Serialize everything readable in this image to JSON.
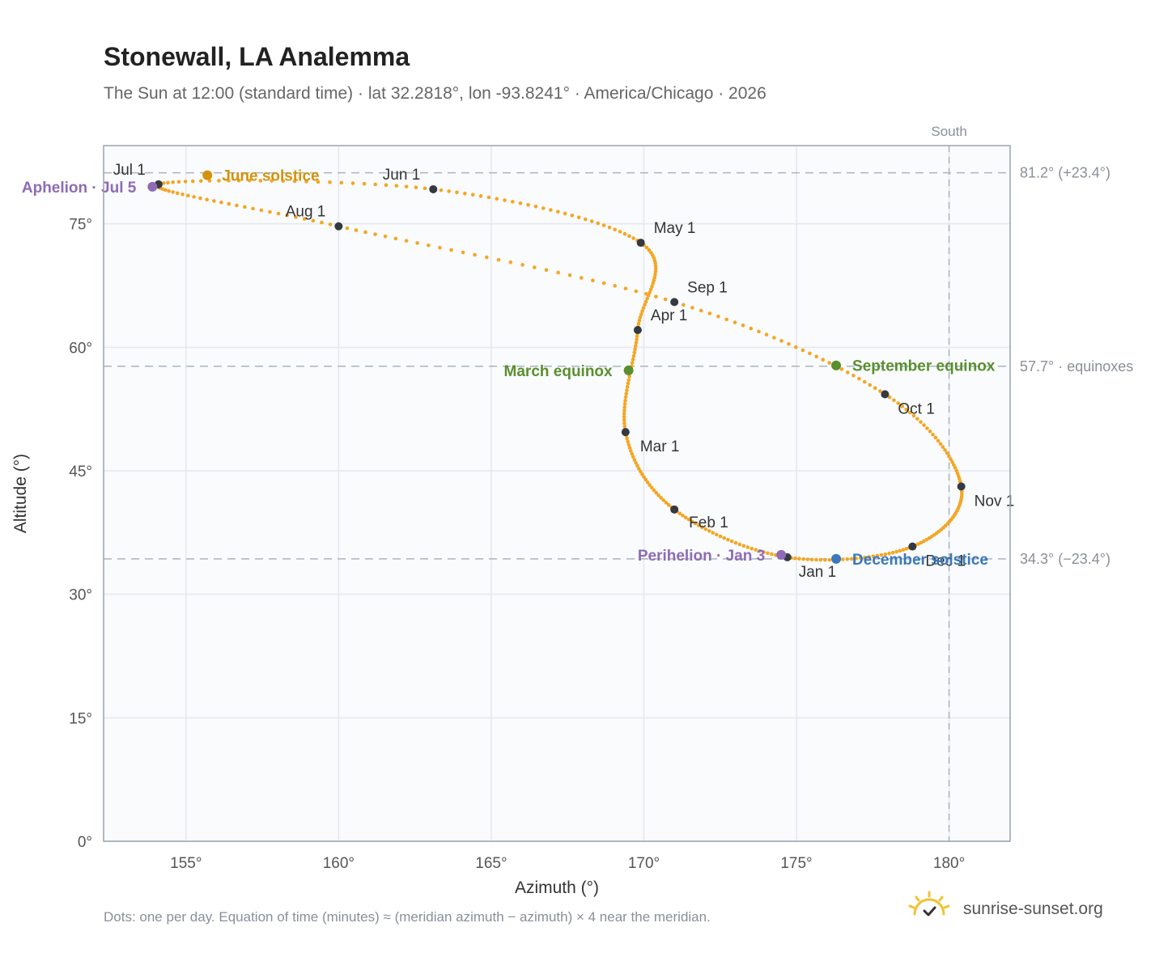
{
  "title": "Stonewall, LA Analemma",
  "subtitle": "The Sun at 12:00 (standard time) · lat 32.2818°, lon -93.8241° · America/Chicago · 2026",
  "footnote": "Dots: one per day. Equation of time (minutes) ≈ (meridian azimuth − azimuth) × 4 near the meridian.",
  "brand": {
    "name": "sunrise-sunset.org",
    "icon": "sun-check-icon"
  },
  "colors": {
    "curve": "#f5a623",
    "month_marker": "#343a40",
    "june_solstice": "#d4930a",
    "equinox": "#5a8f2e",
    "december_solstice": "#3a78b9",
    "apsis": "#8e6bb5",
    "grid": "#e4e8ee",
    "plot_bg": "#f9fbfd",
    "ref_line": "#aab4be"
  },
  "chart_data": {
    "type": "scatter",
    "title": "Stonewall, LA Analemma",
    "xlabel": "Azimuth (°)",
    "ylabel": "Altitude (°)",
    "xlim": [
      152.3,
      182.0
    ],
    "ylim": [
      0,
      84.5
    ],
    "xticks": [
      155,
      160,
      165,
      170,
      175,
      180
    ],
    "xtick_labels": [
      "155°",
      "160°",
      "165°",
      "170°",
      "175°",
      "180°"
    ],
    "yticks": [
      0,
      15,
      30,
      45,
      60,
      75
    ],
    "ytick_labels": [
      "0°",
      "15°",
      "30°",
      "45°",
      "60°",
      "75°"
    ],
    "grid": true,
    "meridian": {
      "azimuth": 180,
      "label": "South"
    },
    "reference_lines": [
      {
        "altitude": 81.2,
        "label": "81.2° (+23.4°)"
      },
      {
        "altitude": 57.7,
        "label": "57.7° · equinoxes"
      },
      {
        "altitude": 34.3,
        "label": "34.3° (−23.4°)"
      }
    ],
    "series": [
      {
        "points": [
          [
            174.7,
            34.5
          ],
          [
            171.0,
            40.3
          ],
          [
            169.4,
            49.7
          ],
          [
            169.8,
            62.1
          ],
          [
            169.9,
            72.7
          ],
          [
            163.1,
            79.2
          ],
          [
            154.1,
            79.8
          ],
          [
            160.0,
            74.7
          ],
          [
            171.0,
            65.5
          ],
          [
            177.9,
            54.3
          ],
          [
            180.4,
            43.1
          ],
          [
            178.8,
            35.8
          ],
          [
            174.7,
            34.5
          ]
        ]
      }
    ],
    "month_markers": [
      {
        "label": "Jan 1",
        "az": 174.7,
        "alt": 34.5
      },
      {
        "label": "Feb 1",
        "az": 171.0,
        "alt": 40.3
      },
      {
        "label": "Mar 1",
        "az": 169.4,
        "alt": 49.7
      },
      {
        "label": "Apr 1",
        "az": 169.8,
        "alt": 62.1
      },
      {
        "label": "May 1",
        "az": 169.9,
        "alt": 72.7
      },
      {
        "label": "Jun 1",
        "az": 163.1,
        "alt": 79.2
      },
      {
        "label": "Jul 1",
        "az": 154.1,
        "alt": 79.8
      },
      {
        "label": "Aug 1",
        "az": 160.0,
        "alt": 74.7
      },
      {
        "label": "Sep 1",
        "az": 171.0,
        "alt": 65.5
      },
      {
        "label": "Oct 1",
        "az": 177.9,
        "alt": 54.3
      },
      {
        "label": "Nov 1",
        "az": 180.4,
        "alt": 43.1
      },
      {
        "label": "Dec 1",
        "az": 178.8,
        "alt": 35.8
      }
    ],
    "events": [
      {
        "label": "June solstice",
        "az": 155.7,
        "alt": 80.9,
        "color": "june_solstice"
      },
      {
        "label": "March equinox",
        "az": 169.5,
        "alt": 57.2,
        "color": "equinox"
      },
      {
        "label": "September equinox",
        "az": 176.3,
        "alt": 57.8,
        "color": "equinox"
      },
      {
        "label": "December solstice",
        "az": 176.3,
        "alt": 34.3,
        "color": "december_solstice"
      },
      {
        "label": "Aphelion · Jul 5",
        "az": 153.9,
        "alt": 79.5,
        "color": "apsis"
      },
      {
        "label": "Perihelion · Jan 3",
        "az": 174.5,
        "alt": 34.8,
        "color": "apsis"
      }
    ]
  }
}
